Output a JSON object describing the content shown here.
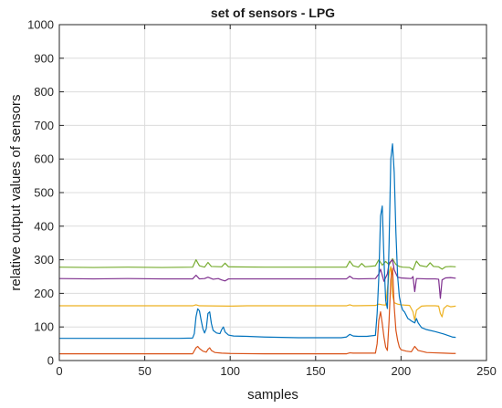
{
  "chart_data": {
    "type": "line",
    "title": "set of sensors - LPG",
    "xlabel": "samples",
    "ylabel": "relative output values of sensors",
    "xlim": [
      0,
      250
    ],
    "ylim": [
      0,
      1000
    ],
    "xticks": [
      0,
      50,
      100,
      150,
      200,
      250
    ],
    "yticks": [
      0,
      100,
      200,
      300,
      400,
      500,
      600,
      700,
      800,
      900,
      1000
    ],
    "grid": true,
    "colors": [
      "#77ac30",
      "#7e2f8e",
      "#edb120",
      "#0072bd",
      "#d95319"
    ],
    "series": [
      {
        "color": "#77ac30",
        "points": [
          [
            0,
            278
          ],
          [
            20,
            277
          ],
          [
            40,
            278
          ],
          [
            60,
            277
          ],
          [
            78,
            278
          ],
          [
            80,
            300
          ],
          [
            82,
            282
          ],
          [
            85,
            278
          ],
          [
            87,
            292
          ],
          [
            89,
            280
          ],
          [
            95,
            279
          ],
          [
            97,
            290
          ],
          [
            99,
            279
          ],
          [
            120,
            278
          ],
          [
            150,
            278
          ],
          [
            168,
            278
          ],
          [
            170,
            296
          ],
          [
            172,
            282
          ],
          [
            175,
            278
          ],
          [
            177,
            289
          ],
          [
            179,
            279
          ],
          [
            185,
            282
          ],
          [
            187,
            300
          ],
          [
            189,
            284
          ],
          [
            191,
            295
          ],
          [
            193,
            285
          ],
          [
            195,
            303
          ],
          [
            197,
            286
          ],
          [
            199,
            280
          ],
          [
            201,
            278
          ],
          [
            205,
            277
          ],
          [
            207,
            270
          ],
          [
            209,
            296
          ],
          [
            211,
            283
          ],
          [
            215,
            279
          ],
          [
            217,
            291
          ],
          [
            219,
            280
          ],
          [
            222,
            279
          ],
          [
            224,
            272
          ],
          [
            226,
            279
          ],
          [
            229,
            280
          ],
          [
            232,
            279
          ]
        ]
      },
      {
        "color": "#7e2f8e",
        "points": [
          [
            0,
            244
          ],
          [
            20,
            243
          ],
          [
            40,
            244
          ],
          [
            60,
            243
          ],
          [
            78,
            243
          ],
          [
            80,
            254
          ],
          [
            82,
            243
          ],
          [
            85,
            244
          ],
          [
            87,
            248
          ],
          [
            90,
            242
          ],
          [
            93,
            244
          ],
          [
            95,
            240
          ],
          [
            97,
            237
          ],
          [
            99,
            243
          ],
          [
            120,
            243
          ],
          [
            150,
            243
          ],
          [
            168,
            243
          ],
          [
            170,
            251
          ],
          [
            172,
            244
          ],
          [
            175,
            243
          ],
          [
            185,
            244
          ],
          [
            187,
            258
          ],
          [
            188,
            272
          ],
          [
            190,
            236
          ],
          [
            192,
            258
          ],
          [
            193,
            290
          ],
          [
            195,
            300
          ],
          [
            196,
            270
          ],
          [
            198,
            248
          ],
          [
            200,
            246
          ],
          [
            203,
            245
          ],
          [
            206,
            244
          ],
          [
            207,
            250
          ],
          [
            208,
            205
          ],
          [
            209,
            244
          ],
          [
            215,
            243
          ],
          [
            220,
            243
          ],
          [
            222,
            242
          ],
          [
            223,
            185
          ],
          [
            224,
            240
          ],
          [
            226,
            246
          ],
          [
            229,
            247
          ],
          [
            232,
            245
          ]
        ]
      },
      {
        "color": "#edb120",
        "points": [
          [
            0,
            163
          ],
          [
            40,
            163
          ],
          [
            78,
            163
          ],
          [
            80,
            166
          ],
          [
            82,
            163
          ],
          [
            100,
            162
          ],
          [
            110,
            163
          ],
          [
            150,
            163
          ],
          [
            168,
            163
          ],
          [
            170,
            166
          ],
          [
            172,
            163
          ],
          [
            185,
            164
          ],
          [
            187,
            168
          ],
          [
            189,
            166
          ],
          [
            191,
            165
          ],
          [
            193,
            260
          ],
          [
            194,
            280
          ],
          [
            195,
            196
          ],
          [
            196,
            172
          ],
          [
            198,
            168
          ],
          [
            200,
            166
          ],
          [
            202,
            165
          ],
          [
            205,
            164
          ],
          [
            207,
            145
          ],
          [
            208,
            120
          ],
          [
            209,
            150
          ],
          [
            212,
            162
          ],
          [
            215,
            163
          ],
          [
            220,
            163
          ],
          [
            222,
            162
          ],
          [
            223,
            140
          ],
          [
            224,
            130
          ],
          [
            225,
            155
          ],
          [
            227,
            164
          ],
          [
            229,
            160
          ],
          [
            232,
            162
          ]
        ]
      },
      {
        "color": "#0072bd",
        "points": [
          [
            0,
            66
          ],
          [
            40,
            66
          ],
          [
            70,
            66
          ],
          [
            78,
            67
          ],
          [
            79,
            80
          ],
          [
            80,
            130
          ],
          [
            81,
            154
          ],
          [
            82,
            148
          ],
          [
            83,
            120
          ],
          [
            84,
            95
          ],
          [
            85,
            82
          ],
          [
            86,
            95
          ],
          [
            87,
            140
          ],
          [
            88,
            145
          ],
          [
            89,
            110
          ],
          [
            90,
            90
          ],
          [
            92,
            82
          ],
          [
            94,
            80
          ],
          [
            95,
            92
          ],
          [
            96,
            100
          ],
          [
            97,
            85
          ],
          [
            99,
            76
          ],
          [
            102,
            73
          ],
          [
            110,
            72
          ],
          [
            120,
            70
          ],
          [
            140,
            68
          ],
          [
            150,
            68
          ],
          [
            165,
            68
          ],
          [
            168,
            70
          ],
          [
            170,
            78
          ],
          [
            172,
            73
          ],
          [
            175,
            72
          ],
          [
            180,
            72
          ],
          [
            185,
            75
          ],
          [
            186,
            140
          ],
          [
            187,
            250
          ],
          [
            188,
            430
          ],
          [
            189,
            460
          ],
          [
            190,
            300
          ],
          [
            191,
            180
          ],
          [
            192,
            155
          ],
          [
            193,
            350
          ],
          [
            194,
            600
          ],
          [
            195,
            645
          ],
          [
            196,
            560
          ],
          [
            197,
            380
          ],
          [
            198,
            250
          ],
          [
            199,
            190
          ],
          [
            200,
            165
          ],
          [
            201,
            150
          ],
          [
            202,
            145
          ],
          [
            203,
            135
          ],
          [
            204,
            125
          ],
          [
            205,
            122
          ],
          [
            206,
            118
          ],
          [
            207,
            115
          ],
          [
            208,
            112
          ],
          [
            209,
            125
          ],
          [
            210,
            112
          ],
          [
            212,
            98
          ],
          [
            215,
            92
          ],
          [
            220,
            86
          ],
          [
            225,
            79
          ],
          [
            230,
            70
          ],
          [
            232,
            69
          ]
        ]
      },
      {
        "color": "#d95319",
        "points": [
          [
            0,
            20
          ],
          [
            40,
            20
          ],
          [
            78,
            20
          ],
          [
            80,
            38
          ],
          [
            81,
            42
          ],
          [
            82,
            36
          ],
          [
            84,
            28
          ],
          [
            86,
            25
          ],
          [
            87,
            33
          ],
          [
            88,
            38
          ],
          [
            89,
            30
          ],
          [
            91,
            24
          ],
          [
            95,
            22
          ],
          [
            100,
            21
          ],
          [
            120,
            20
          ],
          [
            150,
            20
          ],
          [
            168,
            20
          ],
          [
            170,
            23
          ],
          [
            172,
            22
          ],
          [
            185,
            22
          ],
          [
            186,
            50
          ],
          [
            187,
            120
          ],
          [
            188,
            145
          ],
          [
            189,
            110
          ],
          [
            190,
            70
          ],
          [
            191,
            40
          ],
          [
            192,
            30
          ],
          [
            193,
            120
          ],
          [
            194,
            240
          ],
          [
            195,
            275
          ],
          [
            196,
            160
          ],
          [
            197,
            90
          ],
          [
            198,
            60
          ],
          [
            199,
            40
          ],
          [
            200,
            32
          ],
          [
            203,
            28
          ],
          [
            206,
            26
          ],
          [
            208,
            42
          ],
          [
            210,
            30
          ],
          [
            215,
            24
          ],
          [
            220,
            23
          ],
          [
            225,
            22
          ],
          [
            230,
            21
          ],
          [
            232,
            21
          ]
        ]
      }
    ]
  }
}
